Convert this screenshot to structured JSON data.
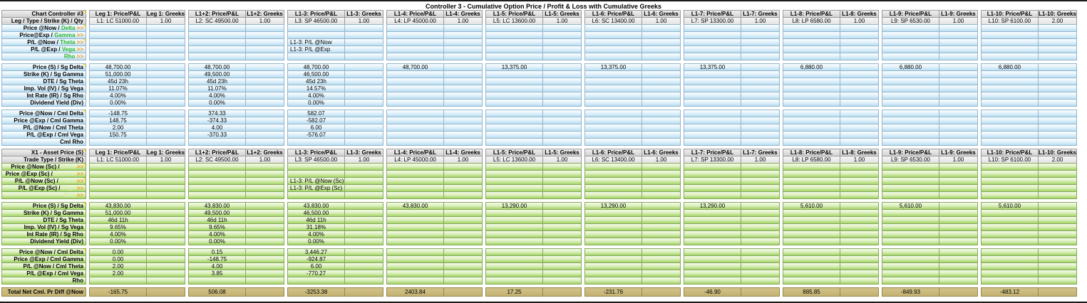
{
  "title": "Controller 3 - Cumulative Option Price / Profit & Loss with Cumulative Greeks",
  "arrows": ">>",
  "columns": [
    {
      "price_header": "Leg 1: Price/P&L",
      "greeks_header": "Leg 1: Greeks",
      "leg": "L1: LC 51000.00",
      "qty": "1.00"
    },
    {
      "price_header": "L1+2: Price/P&L",
      "greeks_header": "L1+2: Greeks",
      "leg": "L2: SC 49500.00",
      "qty": "1.00"
    },
    {
      "price_header": "L1-3: Price/P&L",
      "greeks_header": "L1-3: Greeks",
      "leg": "L3: SP 46500.00",
      "qty": "1.00"
    },
    {
      "price_header": "L1-4: Price/P&L",
      "greeks_header": "L1-4: Greeks",
      "leg": "L4: LP 45000.00",
      "qty": "1.00"
    },
    {
      "price_header": "L1-5: Price/P&L",
      "greeks_header": "L1-5: Greeks",
      "leg": "L5: LC 13600.00",
      "qty": "1.00"
    },
    {
      "price_header": "L1-6: Price/P&L",
      "greeks_header": "L1-6: Greeks",
      "leg": "L6: SC 13400.00",
      "qty": "1.00"
    },
    {
      "price_header": "L1-7: Price/P&L",
      "greeks_header": "L1-7: Greeks",
      "leg": "L7: SP 13300.00",
      "qty": "1.00"
    },
    {
      "price_header": "L1-8: Price/P&L",
      "greeks_header": "L1-8: Greeks",
      "leg": "L8: LP 6580.00",
      "qty": "1.00"
    },
    {
      "price_header": "L1-9: Price/P&L",
      "greeks_header": "L1-9: Greeks",
      "leg": "L9: SP 6530.00",
      "qty": "1.00"
    },
    {
      "price_header": "L1-10: Price/P&L",
      "greeks_header": "L1-10: Greeks",
      "leg": "L10: SP 6100.00",
      "qty": "2.00"
    }
  ],
  "sections": [
    {
      "corner_label": "Chart Controller #3",
      "leg_row_label": "Leg / Type / Strike (K) / Qty",
      "link_rows": [
        {
          "prefix": "Price @Now / ",
          "greek": "Delta ",
          "note": true,
          "l13": ""
        },
        {
          "prefix": "Price@Exp / ",
          "greek": "Gamma ",
          "l13": ""
        },
        {
          "prefix": "P/L @Now / ",
          "greek": "Theta ",
          "note": true,
          "l13": "L1-3: P/L @Now"
        },
        {
          "prefix": "P/L @Exp /  ",
          "greek": "Vega ",
          "l13": "L1-3: P/L @Exp"
        },
        {
          "prefix": "",
          "greek": "Rho ",
          "l13": ""
        }
      ],
      "param_rows": [
        {
          "label": "Price (S) / Sg Delta",
          "note": true,
          "values": [
            "48,700.00",
            "48,700.00",
            "48,700.00",
            "48,700.00",
            "13,375.00",
            "13,375.00",
            "13,375.00",
            "6,880.00",
            "6,880.00",
            "6,880.00"
          ]
        },
        {
          "label": "Strike (K) / Sg Gamma",
          "values": [
            "51,000.00",
            "49,500.00",
            "46,500.00",
            "",
            "",
            "",
            "",
            "",
            "",
            ""
          ]
        },
        {
          "label": "DTE / Sg Theta",
          "values": [
            "45d 23h",
            "45d 23h",
            "45d 23h",
            "",
            "",
            "",
            "",
            "",
            "",
            ""
          ]
        },
        {
          "label": "Imp. Vol (IV) / Sg Vega",
          "values": [
            "11.07%",
            "11.07%",
            "14.57%",
            "",
            "",
            "",
            "",
            "",
            "",
            ""
          ]
        },
        {
          "label": "Int Rate (IR) / Sg Rho",
          "values": [
            "4.00%",
            "4.00%",
            "4.00%",
            "",
            "",
            "",
            "",
            "",
            "",
            ""
          ]
        },
        {
          "label": "Dividend Yield (Div)",
          "values": [
            "0.00%",
            "0.00%",
            "0.00%",
            "",
            "",
            "",
            "",
            "",
            "",
            ""
          ]
        }
      ],
      "cml_rows": [
        {
          "label": "Price @Now / Cml Delta",
          "note": true,
          "values": [
            "-148.75",
            "374.33",
            "582.07",
            "",
            "",
            "",
            "",
            "",
            "",
            ""
          ]
        },
        {
          "label": "Price @Exp / Cml Gamma",
          "values": [
            "148.75",
            "-374.33",
            "-582.07",
            "",
            "",
            "",
            "",
            "",
            "",
            ""
          ]
        },
        {
          "label": "P/L @Now / Cml Theta",
          "values": [
            "2.00",
            "4.00",
            "6.00",
            "",
            "",
            "",
            "",
            "",
            "",
            ""
          ]
        },
        {
          "label": "P/L @Exp / Cml Vega",
          "values": [
            "150.75",
            "-370.33",
            "-576.07",
            "",
            "",
            "",
            "",
            "",
            "",
            ""
          ]
        },
        {
          "label": "Cml Rho",
          "values": [
            "",
            "",
            "",
            "",
            "",
            "",
            "",
            "",
            "",
            ""
          ]
        }
      ]
    },
    {
      "corner_label": "X1 - Asset Price (S)",
      "leg_row_label": "Trade Type / Strike (K)",
      "link_rows": [
        {
          "prefix": "Price @Now (Sc) / ",
          "greek": "Delta ",
          "note": true,
          "l13": ""
        },
        {
          "prefix": "Price @Exp (Sc) / ",
          "greek": "Gamma ",
          "l13": ""
        },
        {
          "prefix": "P/L @Now (Sc) / ",
          "greek": "Theta ",
          "note": true,
          "l13": "L1-3: P/L @Now (Sc)"
        },
        {
          "prefix": "P/L @Exp (Sc) / ",
          "greek": "Vega ",
          "l13": "L1-3: P/L @Exp (Sc)"
        },
        {
          "prefix": "",
          "greek": "Rho ",
          "l13": ""
        }
      ],
      "param_rows": [
        {
          "label": "Price (S) / Sg Delta",
          "note": true,
          "values": [
            "43,830.00",
            "43,830.00",
            "43,830.00",
            "43,830.00",
            "13,290.00",
            "13,290.00",
            "13,290.00",
            "5,610.00",
            "5,610.00",
            "5,610.00"
          ]
        },
        {
          "label": "Strike (K) / Sg Gamma",
          "values": [
            "51,000.00",
            "49,500.00",
            "46,500.00",
            "",
            "",
            "",
            "",
            "",
            "",
            ""
          ]
        },
        {
          "label": "DTE / Sg Theta",
          "values": [
            "46d 11h",
            "46d 11h",
            "46d 11h",
            "",
            "",
            "",
            "",
            "",
            "",
            ""
          ]
        },
        {
          "label": "Imp. Vol (IV) / Sg Vega",
          "values": [
            "9.65%",
            "9.65%",
            "31.18%",
            "",
            "",
            "",
            "",
            "",
            "",
            ""
          ]
        },
        {
          "label": "Int Rate (IR) / Sg Rho",
          "values": [
            "4.00%",
            "4.00%",
            "4.00%",
            "",
            "",
            "",
            "",
            "",
            "",
            ""
          ]
        },
        {
          "label": "Dividend Yield (Div)",
          "values": [
            "0.00%",
            "0.00%",
            "0.00%",
            "",
            "",
            "",
            "",
            "",
            "",
            ""
          ]
        }
      ],
      "cml_rows": [
        {
          "label": "Price @Now / Cml Delta",
          "note": true,
          "values": [
            "0.00",
            "0.15",
            "3,446.27",
            "",
            "",
            "",
            "",
            "",
            "",
            ""
          ]
        },
        {
          "label": "Price @Exp / Cml Gamma",
          "values": [
            "0.00",
            "-148.75",
            "-924.87",
            "",
            "",
            "",
            "",
            "",
            "",
            ""
          ]
        },
        {
          "label": "P/L @Now / Cml Theta",
          "values": [
            "2.00",
            "4.00",
            "6.00",
            "",
            "",
            "",
            "",
            "",
            "",
            ""
          ]
        },
        {
          "label": "P/L @Exp / Cml Vega",
          "values": [
            "2.00",
            "3.85",
            "-770.27",
            "",
            "",
            "",
            "",
            "",
            "",
            ""
          ]
        },
        {
          "label": "Rho",
          "values": [
            "",
            "",
            "",
            "",
            "",
            "",
            "",
            "",
            "",
            ""
          ]
        }
      ],
      "total_row": {
        "label": "Total Net Cml. Pr Diff @Now",
        "values": [
          "-165.75",
          "506.08",
          "-3253.38",
          "2403.84",
          "17.25",
          "-231.76",
          "-46.90",
          "885.85",
          "-849.93",
          "-483.12"
        ]
      }
    }
  ]
}
